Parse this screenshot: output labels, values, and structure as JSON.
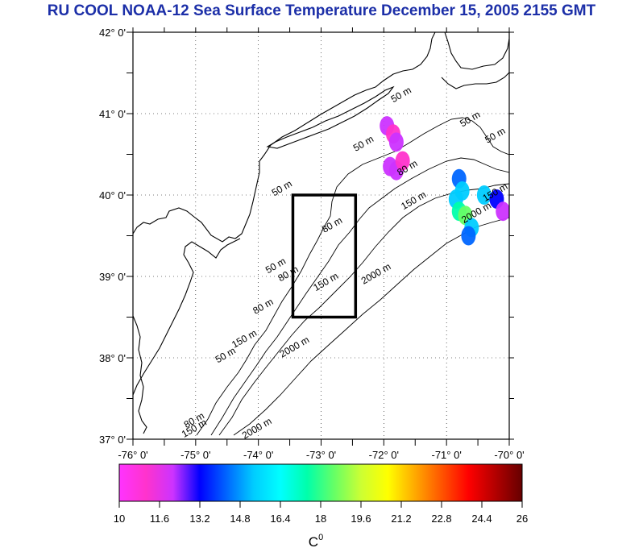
{
  "title": "RU COOL  NOAA-12 Sea Surface Temperature December 15, 2005 2155 GMT",
  "map": {
    "lon_range": [
      -76,
      -70
    ],
    "lat_range": [
      37,
      42
    ],
    "lon_ticks": [
      "-76° 0'",
      "-75° 0'",
      "-74° 0'",
      "-73° 0'",
      "-72° 0'",
      "-71° 0'",
      "-70° 0'"
    ],
    "lat_ticks": [
      "42° 0'",
      "41° 0'",
      "40° 0'",
      "39° 0'",
      "38° 0'",
      "37° 0'"
    ],
    "grid": "dotted",
    "study_box": {
      "lon": [
        -73.45,
        -72.45
      ],
      "lat": [
        38.5,
        40.0
      ]
    },
    "depth_labels": [
      {
        "text": "50 m",
        "lon": -71.7,
        "lat": 41.2
      },
      {
        "text": "50 m",
        "lon": -72.3,
        "lat": 40.6
      },
      {
        "text": "50 m",
        "lon": -73.6,
        "lat": 40.05
      },
      {
        "text": "50 m",
        "lon": -73.7,
        "lat": 39.1
      },
      {
        "text": "50 m",
        "lon": -74.5,
        "lat": 38.0
      },
      {
        "text": "50 m",
        "lon": -70.6,
        "lat": 40.9
      },
      {
        "text": "50 m",
        "lon": -70.2,
        "lat": 40.7
      },
      {
        "text": "80 m",
        "lon": -71.6,
        "lat": 40.3
      },
      {
        "text": "80 m",
        "lon": -72.8,
        "lat": 39.6
      },
      {
        "text": "80 m",
        "lon": -73.5,
        "lat": 39.0
      },
      {
        "text": "80 m",
        "lon": -73.9,
        "lat": 38.6
      },
      {
        "text": "80 m",
        "lon": -75.0,
        "lat": 37.2
      },
      {
        "text": "150 m",
        "lon": -71.5,
        "lat": 39.9
      },
      {
        "text": "150 m",
        "lon": -72.9,
        "lat": 38.9
      },
      {
        "text": "150 m",
        "lon": -74.2,
        "lat": 38.2
      },
      {
        "text": "150 m",
        "lon": -70.2,
        "lat": 40.0
      },
      {
        "text": "150 m",
        "lon": -75.0,
        "lat": 37.1
      },
      {
        "text": "2000 m",
        "lon": -70.5,
        "lat": 39.75
      },
      {
        "text": "2000 m",
        "lon": -72.1,
        "lat": 39.0
      },
      {
        "text": "2000 m",
        "lon": -73.4,
        "lat": 38.1
      },
      {
        "text": "2000 m",
        "lon": -74.0,
        "lat": 37.1
      }
    ]
  },
  "colorbar": {
    "ticks": [
      "10",
      "11.6",
      "13.2",
      "14.8",
      "16.4",
      "18",
      "19.6",
      "21.2",
      "22.8",
      "24.4",
      "26"
    ],
    "min": 10,
    "max": 26,
    "unit_label": "C",
    "unit_sup": "0",
    "colors": [
      "#ff33ff",
      "#ff33cc",
      "#cc33ff",
      "#0000ff",
      "#0066ff",
      "#00ccff",
      "#00ffff",
      "#00ffaa",
      "#66ff66",
      "#ccff33",
      "#ffff00",
      "#ffaa00",
      "#ff5500",
      "#ff0000",
      "#b30000",
      "#660000"
    ]
  },
  "sst_patches": [
    {
      "lon": -71.95,
      "lat": 40.85,
      "temp": 11.8
    },
    {
      "lon": -71.85,
      "lat": 40.75,
      "temp": 11.5
    },
    {
      "lon": -71.8,
      "lat": 40.65,
      "temp": 12.0
    },
    {
      "lon": -71.9,
      "lat": 40.35,
      "temp": 11.7
    },
    {
      "lon": -71.8,
      "lat": 40.3,
      "temp": 12.2
    },
    {
      "lon": -71.7,
      "lat": 40.42,
      "temp": 11.2
    },
    {
      "lon": -70.8,
      "lat": 40.2,
      "temp": 14.5
    },
    {
      "lon": -70.75,
      "lat": 40.05,
      "temp": 15.0
    },
    {
      "lon": -70.85,
      "lat": 39.95,
      "temp": 15.5
    },
    {
      "lon": -70.8,
      "lat": 39.8,
      "temp": 17.5
    },
    {
      "lon": -70.7,
      "lat": 39.75,
      "temp": 19.0
    },
    {
      "lon": -70.6,
      "lat": 39.6,
      "temp": 15.8
    },
    {
      "lon": -70.65,
      "lat": 39.5,
      "temp": 14.0
    },
    {
      "lon": -70.4,
      "lat": 40.0,
      "temp": 14.8
    },
    {
      "lon": -70.2,
      "lat": 39.95,
      "temp": 13.5
    },
    {
      "lon": -70.1,
      "lat": 39.8,
      "temp": 12.0
    }
  ]
}
